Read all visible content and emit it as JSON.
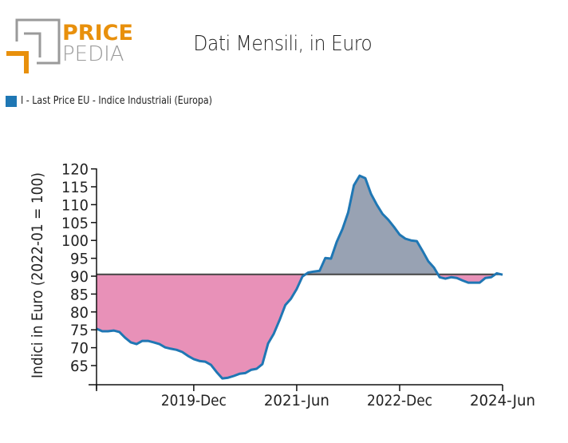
{
  "brand": {
    "name_top": "PRICE",
    "name_bottom": "PEDIA",
    "accent_color": "#e8900c",
    "gray_color": "#9a9a9a"
  },
  "title": "Dati Mensili, in Euro",
  "legend": {
    "label": "I - Last Price EU - Indice Industriali (Europa)",
    "color": "#1f77b4"
  },
  "chart_data": {
    "type": "area",
    "title": "Dati Mensili, in Euro",
    "xlabel": "",
    "ylabel": "Indici in Euro (2022-01 = 100)",
    "ylim": [
      59.6,
      121
    ],
    "yticks": [
      65,
      70,
      75,
      80,
      85,
      90,
      95,
      100,
      105,
      110,
      115,
      120
    ],
    "x_start": "2018-Jul",
    "x_tick_labels": [
      {
        "label": "",
        "index": 0
      },
      {
        "label": "2019-Dec",
        "index": 17
      },
      {
        "label": "2021-Jun",
        "index": 35
      },
      {
        "label": "2022-Dec",
        "index": 53
      },
      {
        "label": "2024-Jun",
        "index": 71
      }
    ],
    "baseline": 90.5,
    "colors": {
      "line": "#1f77b4",
      "below_fill": "#e891b8",
      "above_fill": "#98a2b3",
      "baseline": "#444444"
    },
    "series": [
      {
        "name": "I - Last Price EU - Indice Industriali (Europa)",
        "values": [
          75.3,
          74.6,
          74.6,
          74.8,
          74.4,
          72.8,
          71.5,
          71.0,
          71.9,
          71.9,
          71.5,
          71.0,
          70.1,
          69.7,
          69.4,
          68.8,
          67.7,
          66.8,
          66.3,
          66.1,
          65.2,
          63.2,
          61.4,
          61.6,
          62.1,
          62.7,
          62.9,
          63.8,
          64.1,
          65.4,
          71.2,
          73.9,
          77.7,
          81.9,
          83.7,
          86.4,
          89.9,
          91.0,
          91.3,
          91.5,
          95.1,
          94.9,
          99.6,
          103.2,
          107.8,
          115.4,
          118.1,
          117.4,
          113.0,
          110.0,
          107.4,
          105.8,
          103.8,
          101.6,
          100.5,
          100.0,
          99.8,
          97.1,
          94.2,
          92.4,
          89.7,
          89.3,
          89.7,
          89.5,
          88.8,
          88.2,
          88.2,
          88.2,
          89.5,
          89.7,
          90.8,
          90.4
        ]
      }
    ]
  }
}
